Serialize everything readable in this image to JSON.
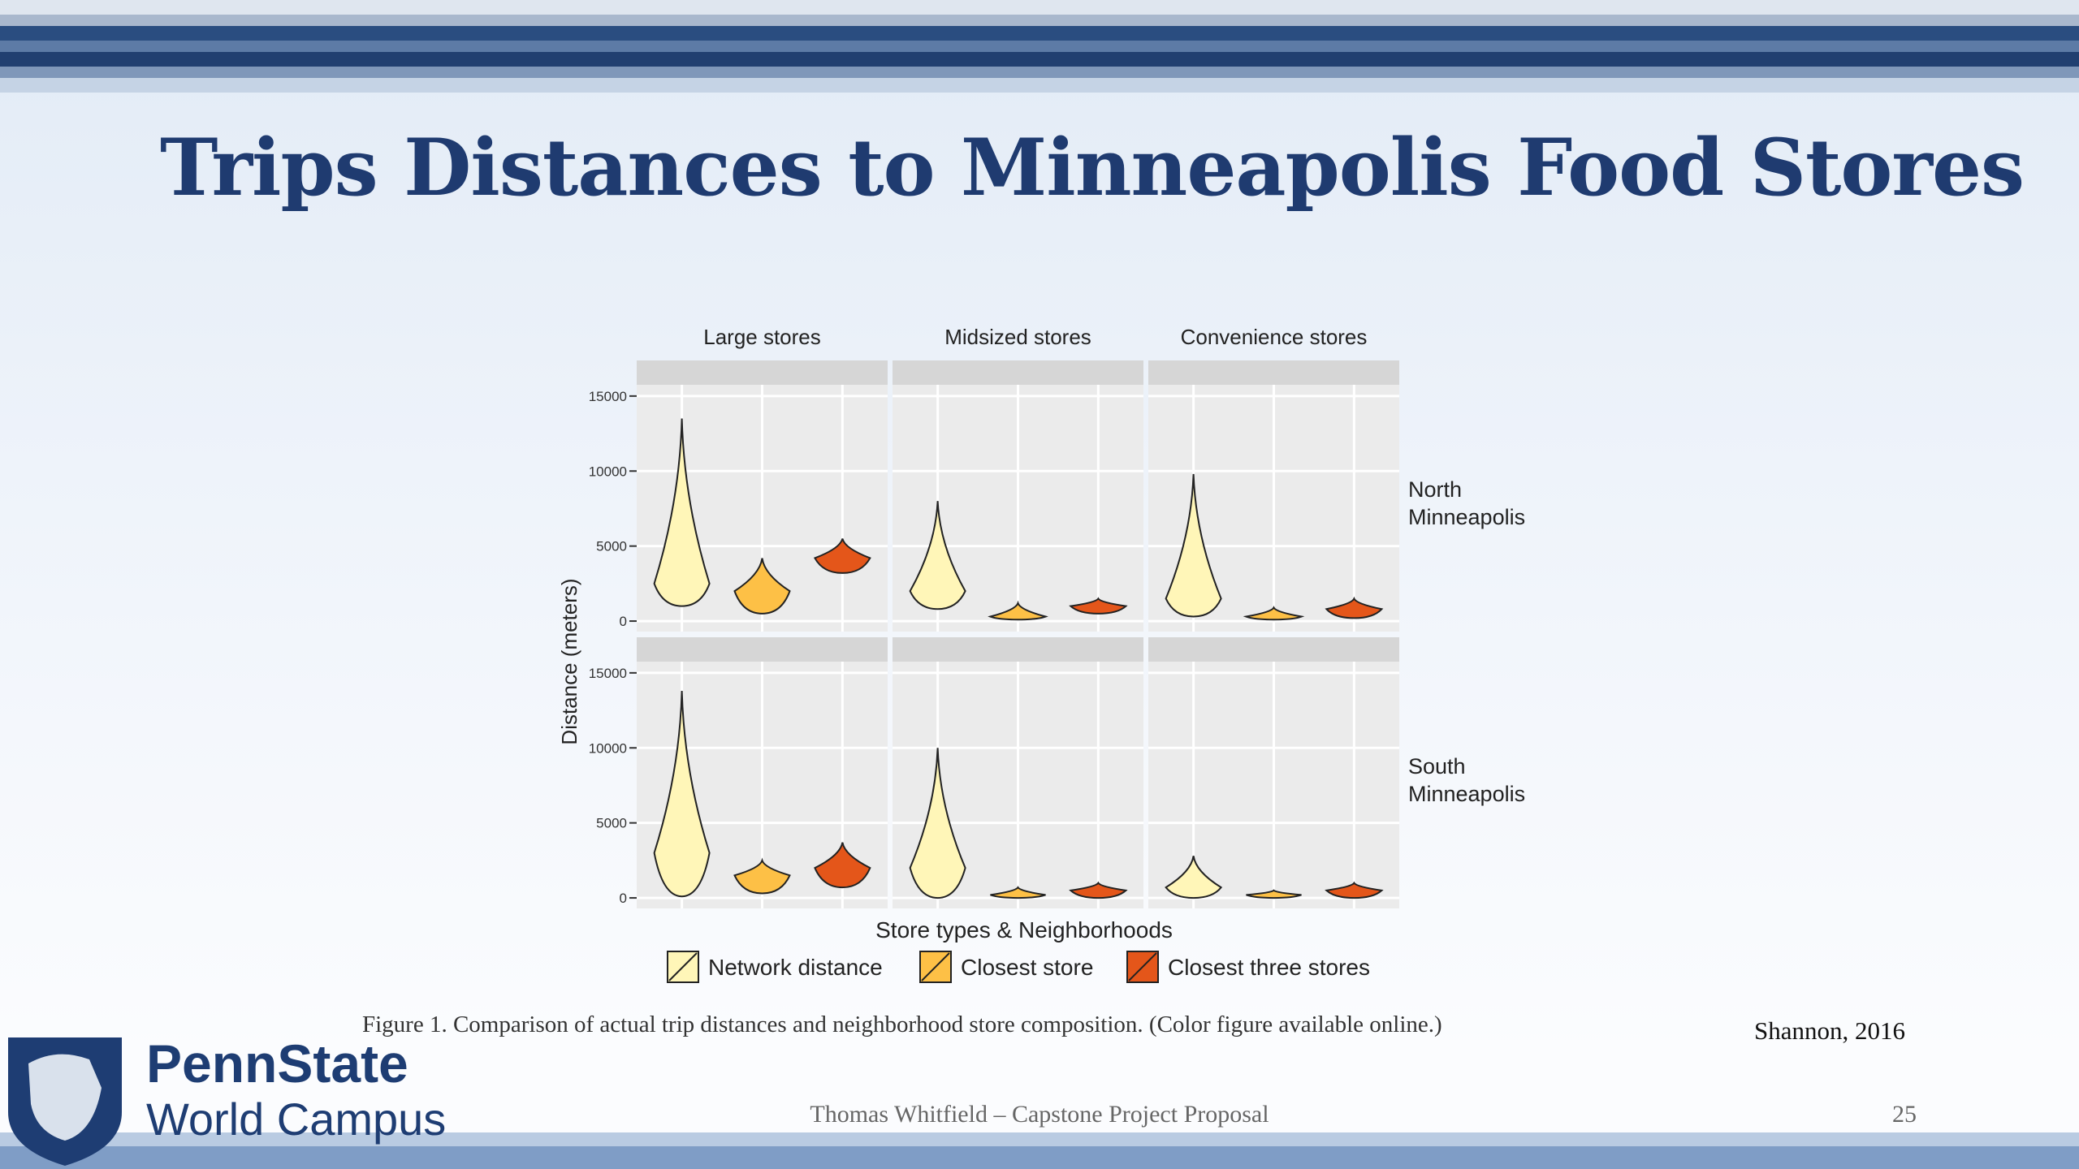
{
  "slide": {
    "title": "Trips Distances to Minneapolis Food Stores",
    "caption": "Figure 1. Comparison of actual trip distances and neighborhood store composition. (Color figure available online.)",
    "source": "Shannon, 2016",
    "footer": "Thomas Whitfield – Capstone Project Proposal",
    "page": "25",
    "logo": {
      "name": "PennState",
      "subtitle": "World Campus"
    }
  },
  "chart_data": {
    "type": "violin",
    "xlabel": "Store types & Neighborhoods",
    "ylabel": "Distance (meters)",
    "columns": [
      "Large stores",
      "Midsized stores",
      "Convenience stores"
    ],
    "series": [
      {
        "name": "Network distance",
        "color": "#fff6b8"
      },
      {
        "name": "Closest store",
        "color": "#fdc046"
      },
      {
        "name": "Closest three stores",
        "color": "#e4561a"
      }
    ],
    "rows": [
      {
        "name": "North Minneapolis",
        "panels": [
          [
            [
              1000,
              2500,
              13500
            ],
            [
              500,
              2000,
              4200
            ],
            [
              3200,
              4200,
              5500
            ]
          ],
          [
            [
              800,
              2000,
              8000
            ],
            [
              100,
              300,
              1200
            ],
            [
              500,
              1000,
              1500
            ]
          ],
          [
            [
              300,
              1500,
              9800
            ],
            [
              100,
              300,
              900
            ],
            [
              200,
              800,
              1500
            ]
          ]
        ]
      },
      {
        "name": "South Minneapolis",
        "panels": [
          [
            [
              100,
              3000,
              13800
            ],
            [
              300,
              1500,
              2500
            ],
            [
              700,
              2000,
              3700
            ]
          ],
          [
            [
              0,
              2000,
              10000
            ],
            [
              0,
              200,
              700
            ],
            [
              0,
              500,
              1000
            ]
          ],
          [
            [
              0,
              700,
              2800
            ],
            [
              0,
              200,
              500
            ],
            [
              0,
              500,
              1000
            ]
          ]
        ]
      }
    ],
    "ylim": [
      -700,
      15750
    ],
    "yticks": [
      0,
      5000,
      10000,
      15000
    ],
    "grid": true
  }
}
